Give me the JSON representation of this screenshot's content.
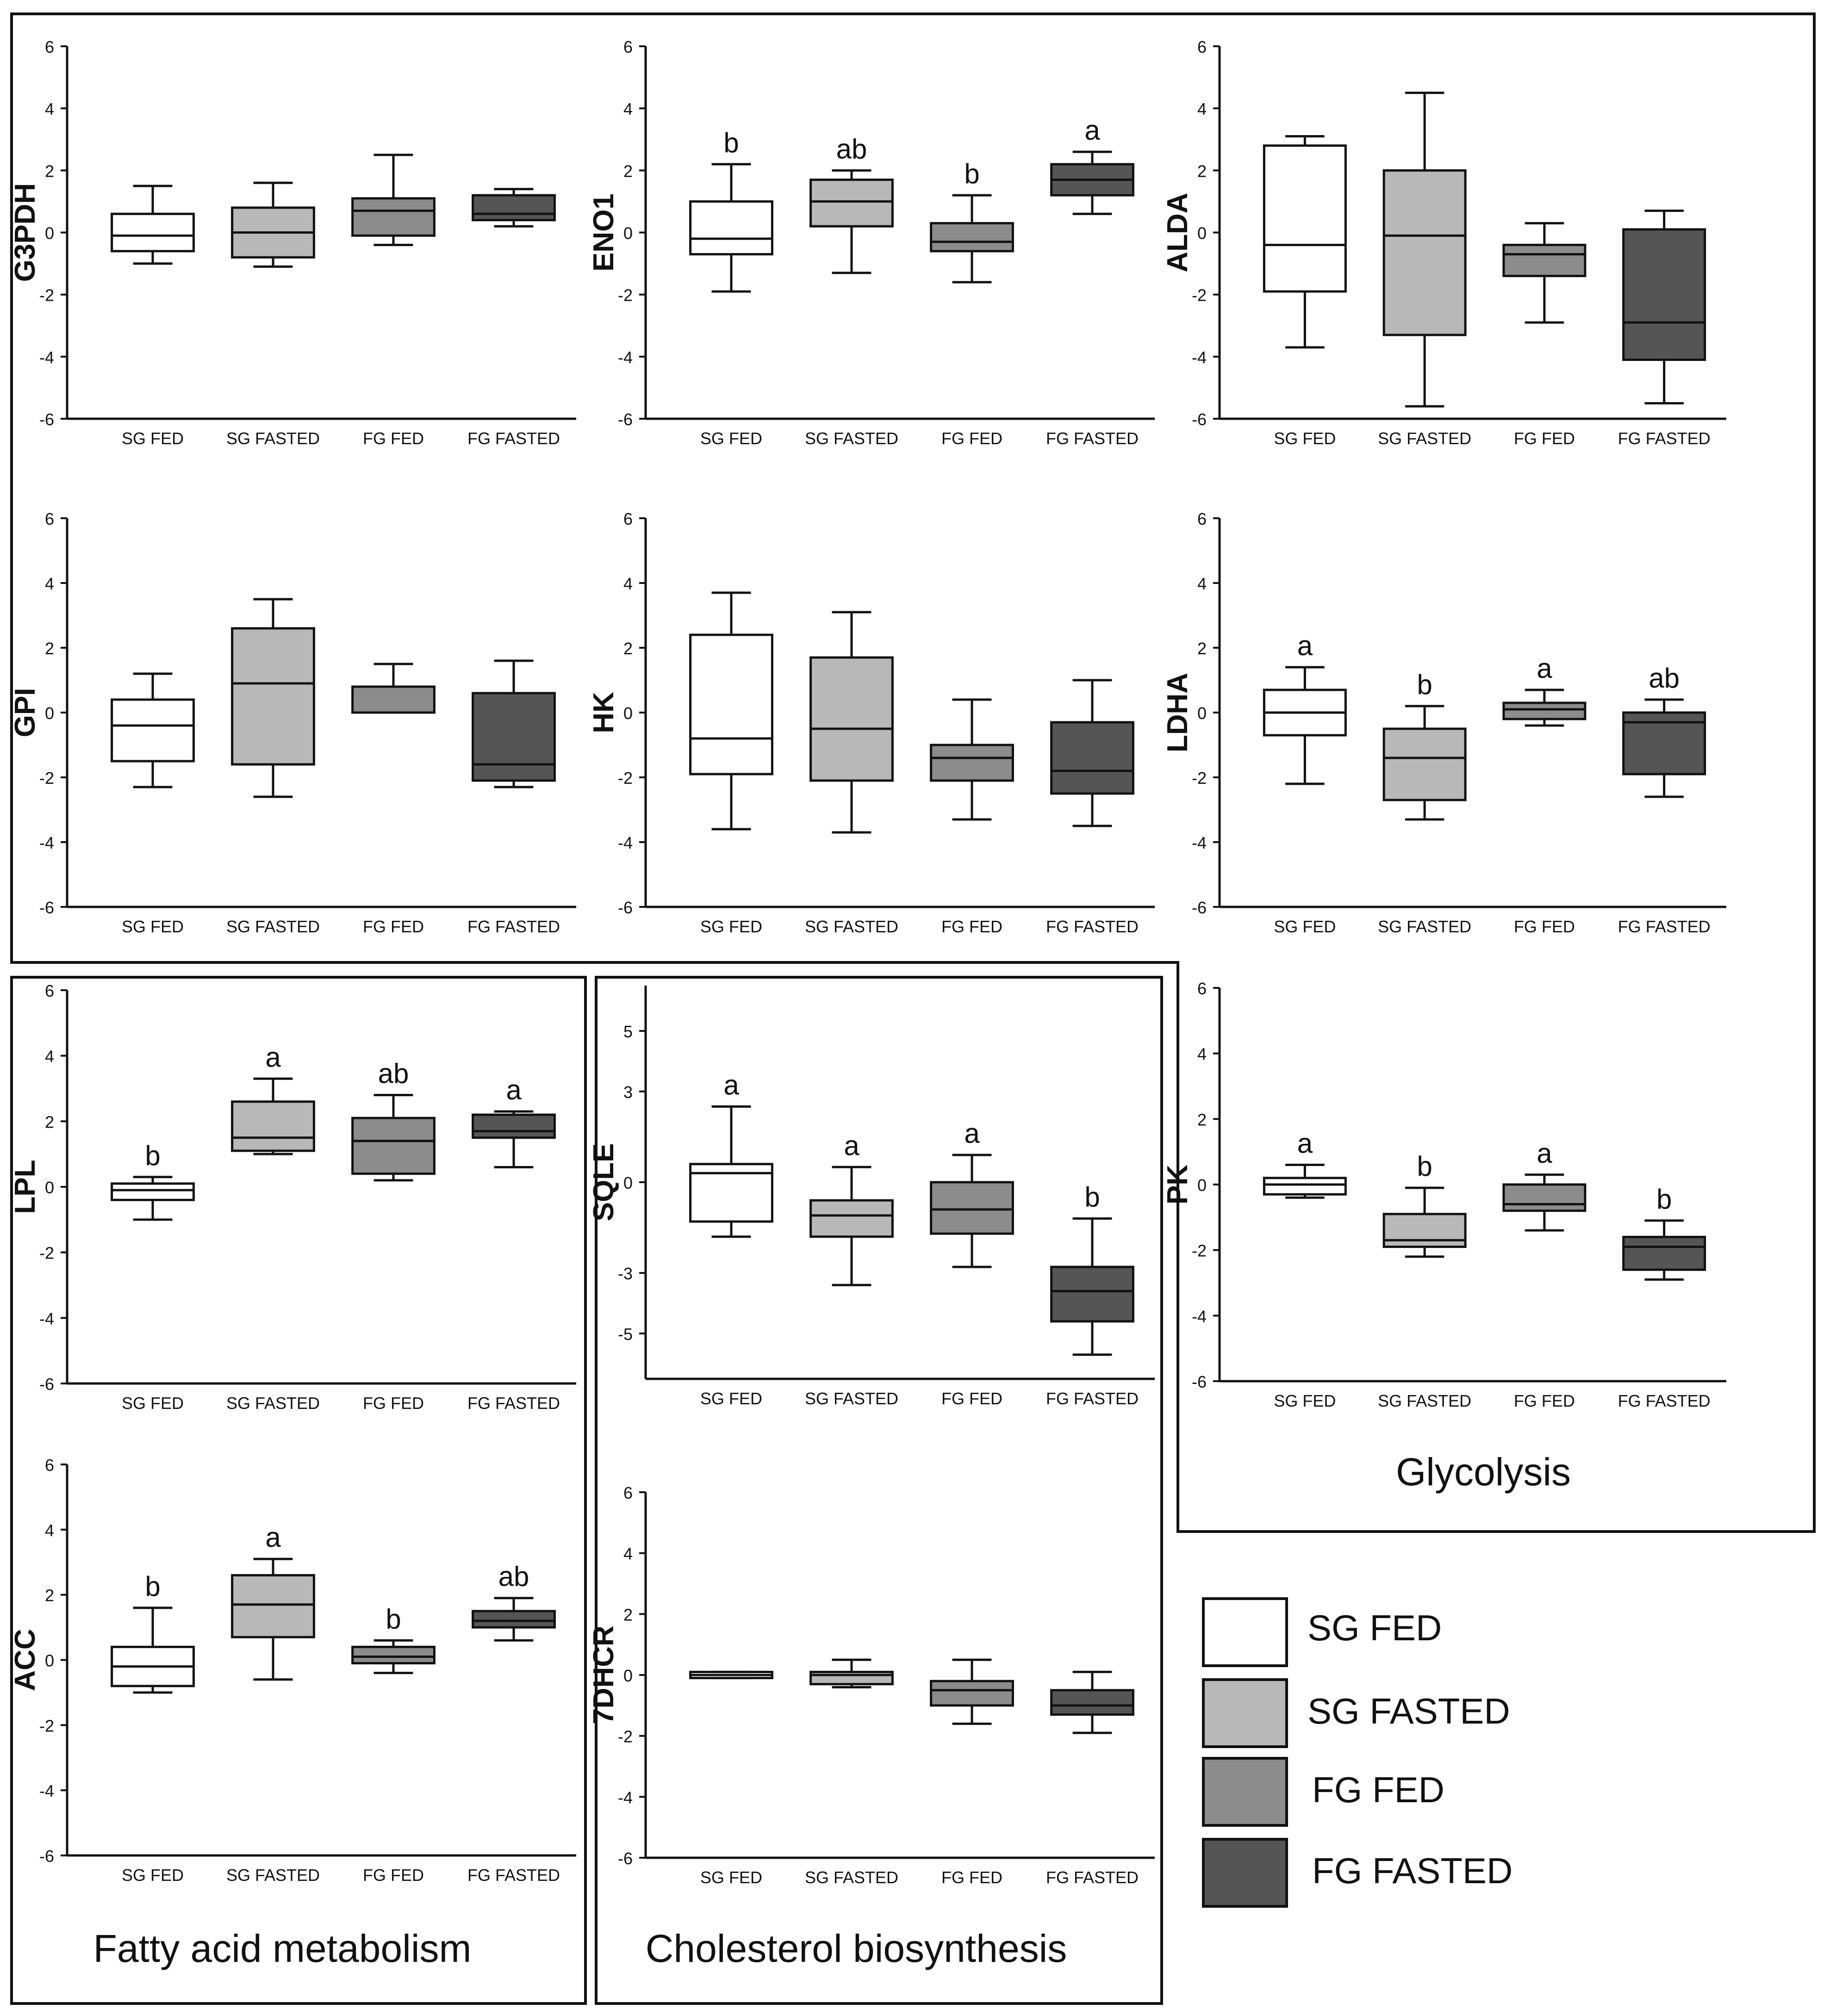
{
  "categories": [
    "SG FED",
    "SG FASTED",
    "FG FED",
    "FG FASTED"
  ],
  "colors": [
    "#ffffff",
    "#b8b8b8",
    "#8c8c8c",
    "#555555"
  ],
  "groups": {
    "glycolysis": "Glycolysis",
    "fatty_acid": "Fatty acid metabolism",
    "cholesterol": "Cholesterol biosynthesis"
  },
  "legend": [
    "SG FED",
    "SG FASTED",
    "FG FED",
    "FG FASTED"
  ],
  "chart_data": [
    {
      "type": "box",
      "group": "glycolysis",
      "ylabel": "G3PDH",
      "ylim": [
        -6,
        6
      ],
      "ticks": [
        -6,
        -4,
        -2,
        0,
        2,
        4,
        6
      ],
      "categories": [
        "SG FED",
        "SG FASTED",
        "FG FED",
        "FG FASTED"
      ],
      "boxes": [
        {
          "min": -1.0,
          "q1": -0.6,
          "median": -0.1,
          "q3": 0.6,
          "max": 1.5
        },
        {
          "min": -1.1,
          "q1": -0.8,
          "median": 0.0,
          "q3": 0.8,
          "max": 1.6
        },
        {
          "min": -0.4,
          "q1": -0.1,
          "median": 0.7,
          "q3": 1.1,
          "max": 2.5
        },
        {
          "min": 0.2,
          "q1": 0.4,
          "median": 0.6,
          "q3": 1.2,
          "max": 1.4
        }
      ],
      "letters": [
        "",
        "",
        "",
        ""
      ]
    },
    {
      "type": "box",
      "group": "glycolysis",
      "ylabel": "ENO1",
      "ylim": [
        -6,
        6
      ],
      "ticks": [
        -6,
        -4,
        -2,
        0,
        2,
        4,
        6
      ],
      "categories": [
        "SG FED",
        "SG FASTED",
        "FG FED",
        "FG FASTED"
      ],
      "boxes": [
        {
          "min": -1.9,
          "q1": -0.7,
          "median": -0.2,
          "q3": 1.0,
          "max": 2.2
        },
        {
          "min": -1.3,
          "q1": 0.2,
          "median": 1.0,
          "q3": 1.7,
          "max": 2.0
        },
        {
          "min": -1.6,
          "q1": -0.6,
          "median": -0.3,
          "q3": 0.3,
          "max": 1.2
        },
        {
          "min": 0.6,
          "q1": 1.2,
          "median": 1.7,
          "q3": 2.2,
          "max": 2.6
        }
      ],
      "letters": [
        "b",
        "ab",
        "b",
        "a"
      ]
    },
    {
      "type": "box",
      "group": "glycolysis",
      "ylabel": "ALDA",
      "ylim": [
        -6,
        6
      ],
      "ticks": [
        -6,
        -4,
        -2,
        0,
        2,
        4,
        6
      ],
      "categories": [
        "SG FED",
        "SG FASTED",
        "FG FED",
        "FG FASTED"
      ],
      "boxes": [
        {
          "min": -3.7,
          "q1": -1.9,
          "median": -0.4,
          "q3": 2.8,
          "max": 3.1
        },
        {
          "min": -5.6,
          "q1": -3.3,
          "median": -0.1,
          "q3": 2.0,
          "max": 4.5
        },
        {
          "min": -2.9,
          "q1": -1.4,
          "median": -0.7,
          "q3": -0.4,
          "max": 0.3
        },
        {
          "min": -5.5,
          "q1": -4.1,
          "median": -2.9,
          "q3": 0.1,
          "max": 0.7
        }
      ],
      "letters": [
        "",
        "",
        "",
        ""
      ]
    },
    {
      "type": "box",
      "group": "glycolysis",
      "ylabel": "GPI",
      "ylim": [
        -6,
        6
      ],
      "ticks": [
        -6,
        -4,
        -2,
        0,
        2,
        4,
        6
      ],
      "categories": [
        "SG FED",
        "SG FASTED",
        "FG FED",
        "FG FASTED"
      ],
      "boxes": [
        {
          "min": -2.3,
          "q1": -1.5,
          "median": -0.4,
          "q3": 0.4,
          "max": 1.2
        },
        {
          "min": -2.6,
          "q1": -1.6,
          "median": 0.9,
          "q3": 2.6,
          "max": 3.5
        },
        {
          "min": 0.0,
          "q1": 0.0,
          "median": 0.0,
          "q3": 0.8,
          "max": 1.5
        },
        {
          "min": -2.3,
          "q1": -2.1,
          "median": -1.6,
          "q3": 0.6,
          "max": 1.6
        }
      ],
      "letters": [
        "",
        "",
        "",
        ""
      ]
    },
    {
      "type": "box",
      "group": "glycolysis",
      "ylabel": "HK",
      "ylim": [
        -6,
        6
      ],
      "ticks": [
        -6,
        -4,
        -2,
        0,
        2,
        4,
        6
      ],
      "categories": [
        "SG FED",
        "SG FASTED",
        "FG FED",
        "FG FASTED"
      ],
      "boxes": [
        {
          "min": -3.6,
          "q1": -1.9,
          "median": -0.8,
          "q3": 2.4,
          "max": 3.7
        },
        {
          "min": -3.7,
          "q1": -2.1,
          "median": -0.5,
          "q3": 1.7,
          "max": 3.1
        },
        {
          "min": -3.3,
          "q1": -2.1,
          "median": -1.4,
          "q3": -1.0,
          "max": 0.4
        },
        {
          "min": -3.5,
          "q1": -2.5,
          "median": -1.8,
          "q3": -0.3,
          "max": 1.0
        }
      ],
      "letters": [
        "",
        "",
        "",
        ""
      ]
    },
    {
      "type": "box",
      "group": "glycolysis",
      "ylabel": "LDHA",
      "ylim": [
        -6,
        6
      ],
      "ticks": [
        -6,
        -4,
        -2,
        0,
        2,
        4,
        6
      ],
      "categories": [
        "SG FED",
        "SG FASTED",
        "FG FED",
        "FG FASTED"
      ],
      "boxes": [
        {
          "min": -2.2,
          "q1": -0.7,
          "median": 0.0,
          "q3": 0.7,
          "max": 1.4
        },
        {
          "min": -3.3,
          "q1": -2.7,
          "median": -1.4,
          "q3": -0.5,
          "max": 0.2
        },
        {
          "min": -0.4,
          "q1": -0.2,
          "median": 0.1,
          "q3": 0.3,
          "max": 0.7
        },
        {
          "min": -2.6,
          "q1": -1.9,
          "median": -0.3,
          "q3": 0.0,
          "max": 0.4
        }
      ],
      "letters": [
        "a",
        "b",
        "a",
        "ab"
      ]
    },
    {
      "type": "box",
      "group": "glycolysis",
      "ylabel": "PK",
      "ylim": [
        -6,
        6
      ],
      "ticks": [
        -6,
        -4,
        -2,
        0,
        2,
        4,
        6
      ],
      "categories": [
        "SG FED",
        "SG FASTED",
        "FG FED",
        "FG FASTED"
      ],
      "boxes": [
        {
          "min": -0.4,
          "q1": -0.3,
          "median": 0.0,
          "q3": 0.2,
          "max": 0.6
        },
        {
          "min": -2.2,
          "q1": -1.9,
          "median": -1.7,
          "q3": -0.9,
          "max": -0.1
        },
        {
          "min": -1.4,
          "q1": -0.8,
          "median": -0.6,
          "q3": 0.0,
          "max": 0.3
        },
        {
          "min": -2.9,
          "q1": -2.6,
          "median": -1.9,
          "q3": -1.6,
          "max": -1.1
        }
      ],
      "letters": [
        "a",
        "b",
        "a",
        "b"
      ]
    },
    {
      "type": "box",
      "group": "fatty_acid",
      "ylabel": "LPL",
      "ylim": [
        -6,
        6
      ],
      "ticks": [
        -6,
        -4,
        -2,
        0,
        2,
        4,
        6
      ],
      "categories": [
        "SG FED",
        "SG FASTED",
        "FG FED",
        "FG FASTED"
      ],
      "boxes": [
        {
          "min": -1.0,
          "q1": -0.4,
          "median": -0.1,
          "q3": 0.1,
          "max": 0.3
        },
        {
          "min": 1.0,
          "q1": 1.1,
          "median": 1.5,
          "q3": 2.6,
          "max": 3.3
        },
        {
          "min": 0.2,
          "q1": 0.4,
          "median": 1.4,
          "q3": 2.1,
          "max": 2.8
        },
        {
          "min": 0.6,
          "q1": 1.5,
          "median": 1.7,
          "q3": 2.2,
          "max": 2.3
        }
      ],
      "letters": [
        "b",
        "a",
        "ab",
        "a"
      ]
    },
    {
      "type": "box",
      "group": "fatty_acid",
      "ylabel": "ACC",
      "ylim": [
        -6,
        6
      ],
      "ticks": [
        -6,
        -4,
        -2,
        0,
        2,
        4,
        6
      ],
      "categories": [
        "SG FED",
        "SG FASTED",
        "FG FED",
        "FG FASTED"
      ],
      "boxes": [
        {
          "min": -1.0,
          "q1": -0.8,
          "median": -0.2,
          "q3": 0.4,
          "max": 1.6
        },
        {
          "min": -0.6,
          "q1": 0.7,
          "median": 1.7,
          "q3": 2.6,
          "max": 3.1
        },
        {
          "min": -0.4,
          "q1": -0.1,
          "median": 0.1,
          "q3": 0.4,
          "max": 0.6
        },
        {
          "min": 0.6,
          "q1": 1.0,
          "median": 1.2,
          "q3": 1.5,
          "max": 1.9
        }
      ],
      "letters": [
        "b",
        "a",
        "b",
        "ab"
      ]
    },
    {
      "type": "box",
      "group": "cholesterol",
      "ylabel": "SQLE",
      "ylim": [
        -6.5,
        6.5
      ],
      "ticks": [
        -5,
        -3,
        0,
        3,
        5
      ],
      "categories": [
        "SG FED",
        "SG FASTED",
        "FG FED",
        "FG FASTED"
      ],
      "boxes": [
        {
          "min": -1.8,
          "q1": -1.3,
          "median": 0.3,
          "q3": 0.6,
          "max": 2.5
        },
        {
          "min": -3.4,
          "q1": -1.8,
          "median": -1.1,
          "q3": -0.6,
          "max": 0.5
        },
        {
          "min": -2.8,
          "q1": -1.7,
          "median": -0.9,
          "q3": 0.0,
          "max": 0.9
        },
        {
          "min": -5.7,
          "q1": -4.6,
          "median": -3.6,
          "q3": -2.8,
          "max": -1.2
        }
      ],
      "letters": [
        "a",
        "a",
        "a",
        "b"
      ]
    },
    {
      "type": "box",
      "group": "cholesterol",
      "ylabel": "7DHCR",
      "ylim": [
        -6,
        6
      ],
      "ticks": [
        -6,
        -4,
        -2,
        0,
        2,
        4,
        6
      ],
      "categories": [
        "SG FED",
        "SG FASTED",
        "FG FED",
        "FG FASTED"
      ],
      "boxes": [
        {
          "min": -0.1,
          "q1": -0.1,
          "median": 0.0,
          "q3": 0.1,
          "max": 0.1
        },
        {
          "min": -0.4,
          "q1": -0.3,
          "median": 0.0,
          "q3": 0.1,
          "max": 0.5
        },
        {
          "min": -1.6,
          "q1": -1.0,
          "median": -0.5,
          "q3": -0.2,
          "max": 0.5
        },
        {
          "min": -1.9,
          "q1": -1.3,
          "median": -1.0,
          "q3": -0.5,
          "max": 0.1
        }
      ],
      "letters": [
        "",
        "",
        "",
        ""
      ]
    }
  ]
}
